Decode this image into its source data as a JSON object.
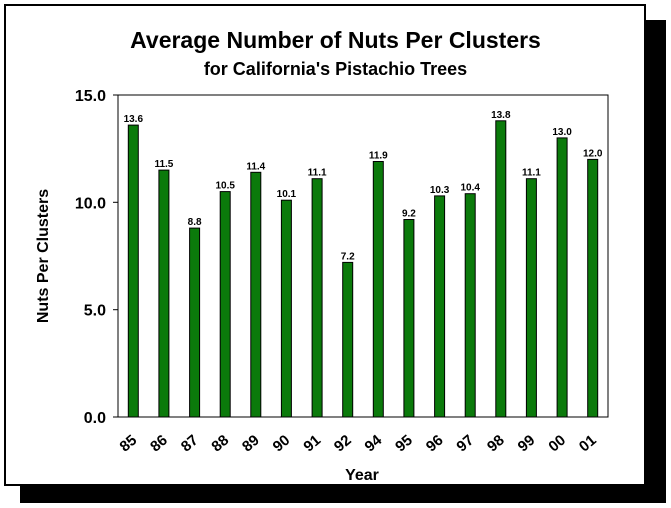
{
  "chart_data": {
    "type": "bar",
    "title": "Average Number of Nuts Per Clusters",
    "subtitle": "for California's Pistachio Trees",
    "xlabel": "Year",
    "ylabel": "Nuts Per Clusters",
    "categories": [
      "85",
      "86",
      "87",
      "88",
      "89",
      "90",
      "91",
      "92",
      "94",
      "95",
      "96",
      "97",
      "98",
      "99",
      "00",
      "01"
    ],
    "values": [
      13.6,
      11.5,
      8.8,
      10.5,
      11.4,
      10.1,
      11.1,
      7.2,
      11.9,
      9.2,
      10.3,
      10.4,
      13.8,
      11.1,
      13.0,
      12.0
    ],
    "data_labels": [
      "13.6",
      "11.5",
      "8.8",
      "10.5",
      "11.4",
      "10.1",
      "11.1",
      "7.2",
      "11.9",
      "9.2",
      "10.3",
      "10.4",
      "13.8",
      "11.1",
      "13.0",
      "12.0"
    ],
    "yticks": [
      "0.0",
      "5.0",
      "10.0",
      "15.0"
    ],
    "ylim": [
      0,
      15
    ],
    "grid": false,
    "legend": "none",
    "bar_color": "#0b7a0b"
  }
}
